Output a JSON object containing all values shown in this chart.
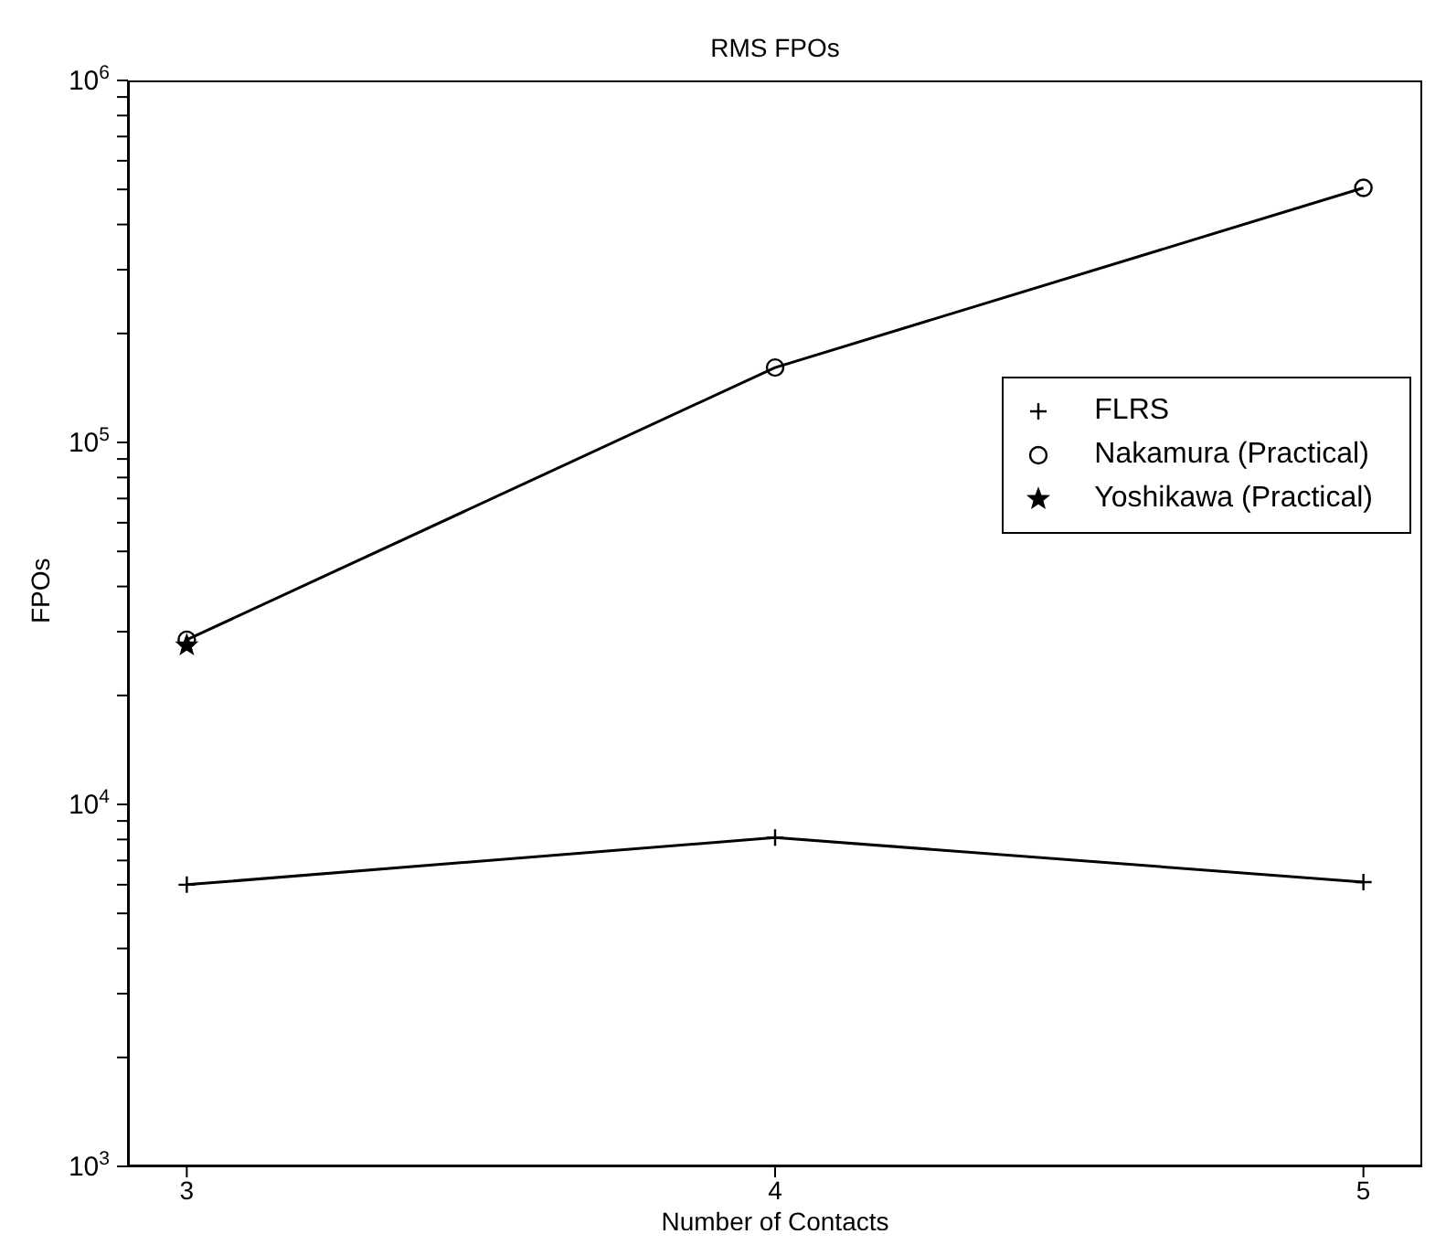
{
  "chart_data": {
    "type": "line",
    "title": "RMS FPOs",
    "xlabel": "Number of Contacts",
    "ylabel": "FPOs",
    "x": [
      3,
      4,
      5
    ],
    "series": [
      {
        "name": "FLRS",
        "color": "#000000",
        "marker": "cross",
        "values": [
          6000,
          8100,
          6100
        ]
      },
      {
        "name": "Nakamura (Practical)",
        "color": "#000000",
        "marker": "circle",
        "values": [
          28500,
          161000,
          505000
        ]
      },
      {
        "name": "Yoshikawa (Practical)",
        "color": "#000000",
        "marker": "star",
        "values": [
          27500,
          null,
          null
        ]
      }
    ],
    "xlim": [
      2.9,
      5.1
    ],
    "xticks": [
      3,
      4,
      5
    ],
    "ylim": [
      1000,
      1000000
    ],
    "log": "y",
    "yticks": [
      {
        "value": 1000,
        "label": "10$^{3}$"
      },
      {
        "value": 2000,
        "label": null
      },
      {
        "value": 3000,
        "label": null
      },
      {
        "value": 4000,
        "label": null
      },
      {
        "value": 5000,
        "label": null
      },
      {
        "value": 6000,
        "label": null
      },
      {
        "value": 7000,
        "label": null
      },
      {
        "value": 8000,
        "label": null
      },
      {
        "value": 9000,
        "label": null
      },
      {
        "value": 10000,
        "label": "10$^{4}$"
      },
      {
        "value": 20000,
        "label": null
      },
      {
        "value": 30000,
        "label": null
      },
      {
        "value": 40000,
        "label": null
      },
      {
        "value": 50000,
        "label": null
      },
      {
        "value": 60000,
        "label": null
      },
      {
        "value": 70000,
        "label": null
      },
      {
        "value": 80000,
        "label": null
      },
      {
        "value": 90000,
        "label": null
      },
      {
        "value": 100000,
        "label": "10$^{5}$"
      },
      {
        "value": 200000,
        "label": null
      },
      {
        "value": 300000,
        "label": null
      },
      {
        "value": 400000,
        "label": null
      },
      {
        "value": 500000,
        "label": null
      },
      {
        "value": 600000,
        "label": null
      },
      {
        "value": 700000,
        "label": null
      },
      {
        "value": 800000,
        "label": null
      },
      {
        "value": 900000,
        "label": null
      },
      {
        "value": 1000000,
        "label": "10$^{6}$"
      }
    ],
    "legend": "right"
  }
}
